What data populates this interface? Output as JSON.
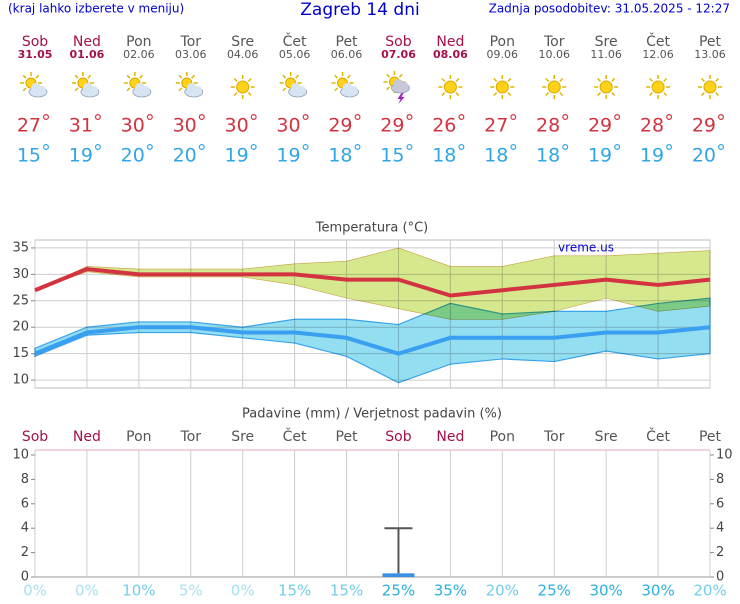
{
  "header": {
    "note": "(kraj lahko izberete v meniju)",
    "title": "Zagreb 14 dni",
    "updated": "Zadnja posodobitev: 31.05.2025 - 12:27"
  },
  "days": {
    "names": [
      "Sob",
      "Ned",
      "Pon",
      "Tor",
      "Sre",
      "Čet",
      "Pet",
      "Sob",
      "Ned",
      "Pon",
      "Tor",
      "Sre",
      "Čet",
      "Pet"
    ],
    "dates": [
      "31.05",
      "01.06",
      "02.06",
      "03.06",
      "04.06",
      "05.06",
      "06.06",
      "07.06",
      "08.06",
      "09.06",
      "10.06",
      "11.06",
      "12.06",
      "13.06"
    ],
    "high": [
      27,
      31,
      30,
      30,
      30,
      30,
      29,
      29,
      26,
      27,
      28,
      29,
      28,
      29
    ],
    "low": [
      15,
      19,
      20,
      20,
      19,
      19,
      18,
      15,
      18,
      18,
      18,
      19,
      19,
      20
    ]
  },
  "chart_data": [
    {
      "type": "line",
      "title": "Temperatura (°C)",
      "annotation": "vreme.us",
      "ylim": [
        8.5,
        36.5
      ],
      "yticks": [
        10,
        15,
        20,
        25,
        30,
        35
      ],
      "grid": true,
      "bands": [
        {
          "color": "#d6e88e",
          "upper": [
            27,
            31.5,
            31,
            31,
            31,
            32,
            32.5,
            35,
            31.5,
            31.5,
            33.5,
            33.5,
            34,
            34.5
          ],
          "lower": [
            27,
            30.5,
            29.5,
            29.5,
            29.5,
            28,
            25.5,
            23.5,
            21.5,
            21.5,
            23,
            25.5,
            23,
            24
          ]
        },
        {
          "color": "#93def0",
          "upper": [
            16,
            20,
            21,
            21,
            20,
            21.5,
            21.5,
            20.5,
            24.5,
            22.5,
            23,
            23,
            24.5,
            25.5
          ],
          "lower": [
            14.5,
            18.5,
            19,
            19,
            18,
            17,
            14.5,
            9.5,
            13,
            14,
            13.5,
            15.5,
            14,
            15
          ]
        }
      ],
      "series": [
        {
          "color": "#d33341",
          "values": [
            27,
            31,
            30,
            30,
            30,
            30,
            29,
            29,
            26,
            27,
            28,
            29,
            28,
            29
          ]
        },
        {
          "color": "#3a9ff0",
          "values": [
            15,
            19,
            20,
            20,
            19,
            19,
            18,
            15,
            18,
            18,
            18,
            19,
            19,
            20
          ]
        }
      ]
    },
    {
      "type": "bar",
      "title": "Padavine (mm) / Verjetnost padavin (%)",
      "categories": [
        "Sob",
        "Ned",
        "Pon",
        "Tor",
        "Sre",
        "Čet",
        "Pet",
        "Sob",
        "Ned",
        "Pon",
        "Tor",
        "Sre",
        "Čet",
        "Pet"
      ],
      "values": [
        0,
        0,
        0,
        0,
        0,
        0,
        0,
        0.3,
        0,
        0,
        0,
        0,
        0,
        0
      ],
      "errors": [
        0,
        0,
        0,
        0,
        0,
        0,
        0,
        3.7,
        0,
        0,
        0,
        0,
        0,
        0
      ],
      "color": "#3a8ee8",
      "ylim": [
        0,
        10
      ],
      "yticks": [
        0,
        2,
        4,
        6,
        8,
        10
      ],
      "probability": {
        "values": [
          0,
          0,
          10,
          5,
          0,
          15,
          15,
          25,
          35,
          20,
          25,
          30,
          30,
          20
        ],
        "value_labels": [
          "0%",
          "0%",
          "10%",
          "5%",
          "0%",
          "15%",
          "15%",
          "25%",
          "35%",
          "20%",
          "25%",
          "30%",
          "30%",
          "20%"
        ]
      }
    }
  ]
}
